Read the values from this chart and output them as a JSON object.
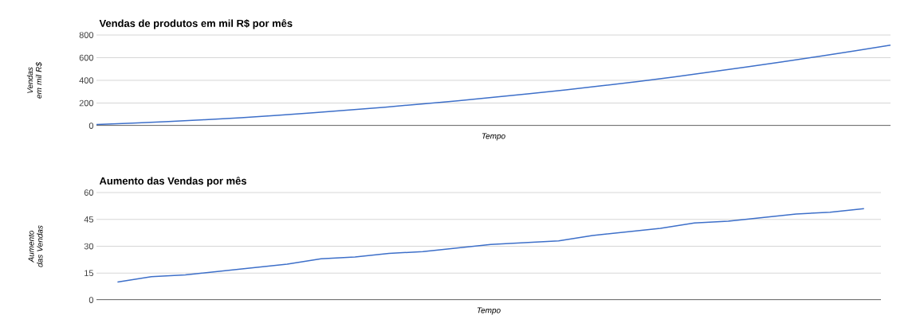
{
  "chart_data": [
    {
      "type": "line",
      "title": "Vendas de produtos em mil R$ por mês",
      "xlabel": "Tempo",
      "ylabel": "Vendas em mil R$",
      "categories": [
        null,
        null,
        null,
        null,
        null,
        null,
        null,
        null,
        null,
        null,
        null,
        null,
        null,
        null,
        null,
        null,
        null,
        null,
        null,
        null,
        null,
        null,
        null
      ],
      "values": [
        10,
        23,
        37,
        53,
        71,
        91,
        114,
        138,
        164,
        191,
        220,
        251,
        283,
        316,
        352,
        390,
        430,
        473,
        517,
        563,
        611,
        660,
        711
      ],
      "color": "#3d6fc9",
      "ylim": [
        0,
        800
      ],
      "yticks": [
        0,
        200,
        400,
        600,
        800
      ],
      "grid": "y"
    },
    {
      "type": "line",
      "title": "Aumento das Vendas por mês",
      "xlabel": "Tempo",
      "ylabel": "Aumento das Vendas",
      "categories": [
        null,
        null,
        null,
        null,
        null,
        null,
        null,
        null,
        null,
        null,
        null,
        null,
        null,
        null,
        null,
        null,
        null,
        null,
        null,
        null,
        null,
        null,
        null
      ],
      "values": [
        10,
        13,
        14,
        16,
        18,
        20,
        23,
        24,
        26,
        27,
        29,
        31,
        32,
        33,
        36,
        38,
        40,
        43,
        44,
        46,
        48,
        49,
        51
      ],
      "color": "#3d6fc9",
      "ylim": [
        0,
        60
      ],
      "yticks": [
        0,
        15,
        30,
        45,
        60
      ],
      "grid": "y"
    }
  ]
}
